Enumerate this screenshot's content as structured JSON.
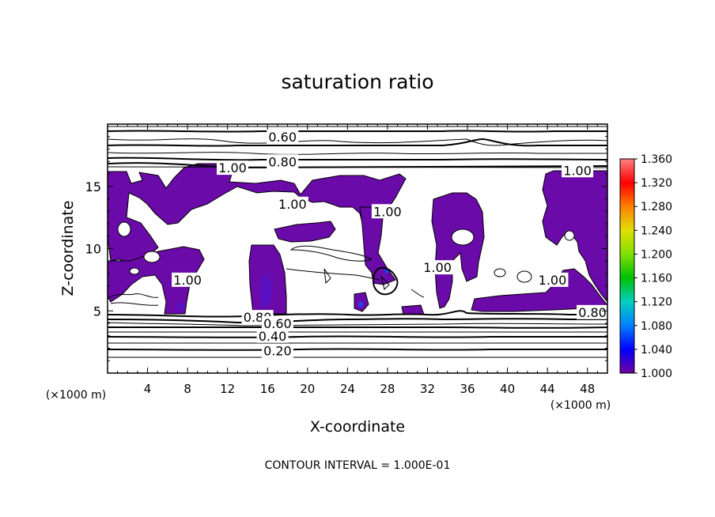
{
  "chart_data": {
    "type": "heatmap",
    "title": "saturation ratio",
    "xlabel": "X-coordinate",
    "ylabel": "Z-coordinate",
    "x_unit_left": "(×1000 m)",
    "x_unit_right": "(×1000 m)",
    "xlim": [
      0,
      50
    ],
    "ylim": [
      0,
      20
    ],
    "x_ticks": [
      "4",
      "8",
      "12",
      "16",
      "20",
      "24",
      "28",
      "32",
      "36",
      "40",
      "44",
      "48"
    ],
    "y_ticks": [
      "5",
      "10",
      "15"
    ],
    "footer": "CONTOUR INTERVAL = 1.000E-01",
    "contour_levels": [
      0.2,
      0.4,
      0.6,
      0.8,
      1.0
    ],
    "contour_labels": [
      {
        "text": "0.60",
        "x": 17.5,
        "y": 19.0
      },
      {
        "text": "0.80",
        "x": 17.5,
        "y": 17.0
      },
      {
        "text": "1.00",
        "x": 12.5,
        "y": 16.5
      },
      {
        "text": "1.00",
        "x": 47.0,
        "y": 16.3
      },
      {
        "text": "1.00",
        "x": 18.5,
        "y": 13.6
      },
      {
        "text": "1.00",
        "x": 28.0,
        "y": 13.0
      },
      {
        "text": "1.00",
        "x": 33.0,
        "y": 8.5
      },
      {
        "text": "1.00",
        "x": 8.0,
        "y": 7.5
      },
      {
        "text": "1.00",
        "x": 44.5,
        "y": 7.5
      },
      {
        "text": "0.80",
        "x": 15.0,
        "y": 4.5
      },
      {
        "text": "0.60",
        "x": 17.0,
        "y": 4.0
      },
      {
        "text": "0.40",
        "x": 16.5,
        "y": 3.0
      },
      {
        "text": "0.20",
        "x": 17.0,
        "y": 1.8
      },
      {
        "text": "0.80",
        "x": 48.5,
        "y": 4.9
      }
    ],
    "colorbar": {
      "ticks": [
        "1.360",
        "1.320",
        "1.280",
        "1.240",
        "1.200",
        "1.160",
        "1.120",
        "1.080",
        "1.040",
        "1.000"
      ],
      "colors": [
        "#ff8080",
        "#ff0000",
        "#ff8000",
        "#e0e000",
        "#80e000",
        "#00c000",
        "#00d0c0",
        "#0080ff",
        "#0000ff",
        "#7000a0"
      ]
    }
  },
  "colors": {
    "supersaturated": "#6a0aa8",
    "contour": "#000000"
  }
}
